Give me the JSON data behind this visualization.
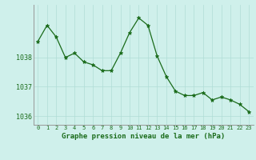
{
  "hours": [
    0,
    1,
    2,
    3,
    4,
    5,
    6,
    7,
    8,
    9,
    10,
    11,
    12,
    13,
    14,
    15,
    16,
    17,
    18,
    19,
    20,
    21,
    22,
    23
  ],
  "pressure": [
    1038.55,
    1039.1,
    1038.7,
    1038.0,
    1038.15,
    1037.85,
    1037.75,
    1037.55,
    1037.55,
    1038.15,
    1038.85,
    1039.35,
    1039.1,
    1038.05,
    1037.35,
    1036.85,
    1036.7,
    1036.7,
    1036.8,
    1036.55,
    1036.65,
    1036.55,
    1036.4,
    1036.15
  ],
  "line_color": "#1a6b1a",
  "marker": "*",
  "marker_size": 3.5,
  "bg_color": "#cff0eb",
  "grid_color": "#b0ddd6",
  "axis_label_color": "#1a6b1a",
  "tick_color": "#1a6b1a",
  "xlabel": "Graphe pression niveau de la mer (hPa)",
  "yticks": [
    1036,
    1037,
    1038
  ],
  "ylim": [
    1035.7,
    1039.8
  ],
  "xlim": [
    -0.5,
    23.5
  ]
}
